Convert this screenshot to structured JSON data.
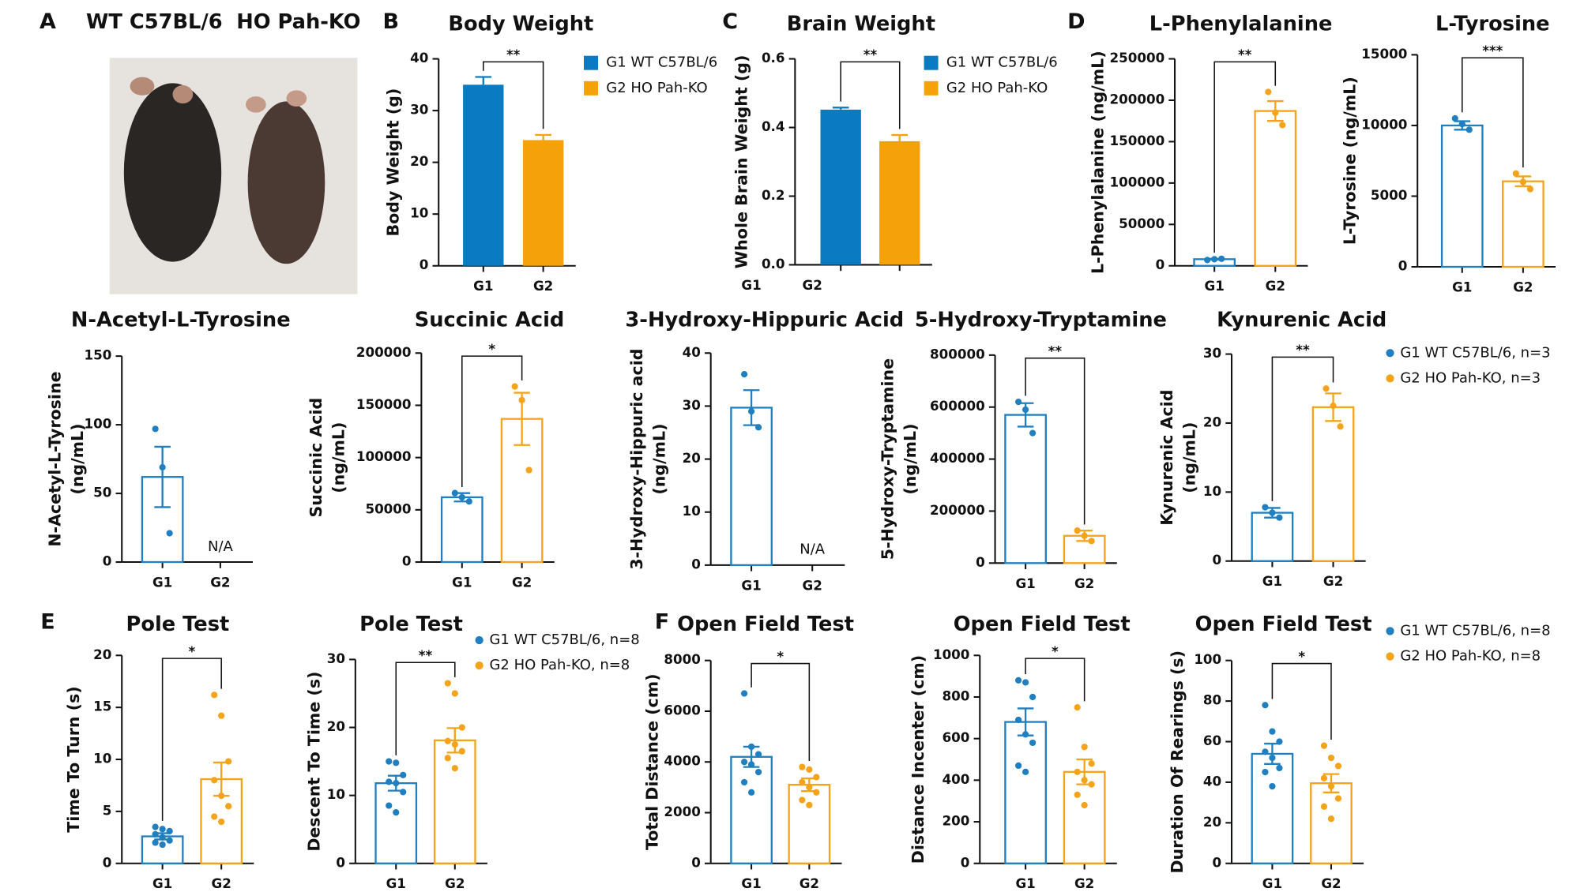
{
  "panel_a": {
    "label": "A",
    "captions": [
      "WT C57BL/6",
      "HO Pah-KO"
    ]
  },
  "legends": [
    {
      "marker": "circle",
      "items": [
        {
          "name": "G1 WT C57BL/6, n=3",
          "color": "#1f7fc0"
        },
        {
          "name": "G2 HO Pah-KO, n=3",
          "color": "#f5a31a"
        }
      ]
    },
    {
      "marker": "circle",
      "items": [
        {
          "name": "G1 WT C57BL/6, n=8",
          "color": "#1f7fc0"
        },
        {
          "name": "G2 HO Pah-KO, n=8",
          "color": "#f5a31a"
        }
      ]
    },
    {
      "marker": "circle",
      "items": [
        {
          "name": "G1 WT C57BL/6, n=8",
          "color": "#1f7fc0"
        },
        {
          "name": "G2 HO Pah-KO, n=8",
          "color": "#f5a31a"
        }
      ]
    }
  ],
  "chart_data": [
    {
      "type": "bar",
      "panel_label": "B",
      "title": "Body Weight",
      "ylabel": [
        "Body Weight (g)"
      ],
      "categories": [
        "G1",
        "G2"
      ],
      "bar_style": "filled",
      "legend": true,
      "significance": "**",
      "series": [
        {
          "name": "G1 WT C57BL/6",
          "color": "#0a7bc2",
          "values": [
            35,
            null
          ],
          "errors": [
            1.5,
            null
          ]
        },
        {
          "name": "G2 HO Pah-KO",
          "color": "#f5a10a",
          "values": [
            null,
            24.3
          ],
          "errors": [
            null,
            1
          ]
        }
      ],
      "ylim": [
        0,
        40
      ],
      "yticks": [
        0,
        10,
        20,
        30,
        40
      ]
    },
    {
      "type": "bar",
      "panel_label": "C",
      "title": "Brain Weight",
      "ylabel": [
        "Whole Brain Weight (g)"
      ],
      "categories": [
        "G1",
        "G2"
      ],
      "bar_style": "filled",
      "legend": true,
      "significance": "**",
      "series": [
        {
          "name": "G1 WT C57BL/6",
          "color": "#0a7bc2",
          "values": [
            0.452,
            null
          ],
          "errors": [
            0.006,
            null
          ]
        },
        {
          "name": "G2 HO Pah-KO",
          "color": "#f5a10a",
          "values": [
            null,
            0.36
          ],
          "errors": [
            null,
            0.018
          ]
        }
      ],
      "ylim": [
        0,
        0.6
      ],
      "yticks": [
        {
          "value": 0,
          "label": "0.0"
        },
        0.2,
        0.4,
        0.6
      ]
    },
    {
      "type": "bar",
      "panel_label": "D",
      "title": "L-Phenylalanine",
      "ylabel": [
        "L-Phenylalanine (ng/mL)"
      ],
      "categories": [
        "G1",
        "G2"
      ],
      "bar_style": "outline",
      "significance": "**",
      "series": [
        {
          "color": "#1f7fc0",
          "values": [
            8000,
            null
          ],
          "errors": [
            500,
            null
          ],
          "points": [
            [
              7000,
              8000,
              8500
            ],
            null
          ]
        },
        {
          "color": "#f5a31a",
          "values": [
            null,
            187000
          ],
          "errors": [
            null,
            12000
          ],
          "points": [
            null,
            [
              210000,
              185000,
              170000
            ]
          ]
        }
      ],
      "ylim": [
        0,
        250000
      ],
      "yticks": [
        0,
        50000,
        100000,
        150000,
        200000,
        250000
      ]
    },
    {
      "type": "bar",
      "title": "L-Tyrosine",
      "ylabel": [
        "L-Tyrosine (ng/mL)"
      ],
      "categories": [
        "G1",
        "G2"
      ],
      "bar_style": "outline",
      "significance": "***",
      "series": [
        {
          "color": "#1f7fc0",
          "values": [
            10000,
            null
          ],
          "errors": [
            300,
            null
          ],
          "points": [
            [
              10500,
              10100,
              9700
            ],
            null
          ]
        },
        {
          "color": "#f5a31a",
          "values": [
            null,
            6050
          ],
          "errors": [
            null,
            350
          ],
          "points": [
            null,
            [
              6600,
              6000,
              5500
            ]
          ]
        }
      ],
      "ylim": [
        0,
        15000
      ],
      "yticks": [
        0,
        5000,
        10000,
        15000
      ]
    },
    {
      "type": "bar",
      "title": "N-Acetyl-L-Tyrosine",
      "ylabel": [
        "N-Acetyl-L-Tyrosine",
        "(ng/mL)"
      ],
      "categories": [
        "G1",
        "G2"
      ],
      "bar_style": "outline",
      "missing_label": "N/A",
      "series": [
        {
          "color": "#1f7fc0",
          "values": [
            62,
            null
          ],
          "errors": [
            22,
            null
          ],
          "points": [
            [
              97,
              69,
              21
            ],
            null
          ]
        }
      ],
      "ylim": [
        0,
        150
      ],
      "yticks": [
        0,
        50,
        100,
        150
      ]
    },
    {
      "type": "bar",
      "title": "Succinic Acid",
      "ylabel": [
        "Succinic Acid",
        "(ng/mL)"
      ],
      "categories": [
        "G1",
        "G2"
      ],
      "bar_style": "outline",
      "significance": "*",
      "series": [
        {
          "color": "#1f7fc0",
          "values": [
            62000,
            null
          ],
          "errors": [
            4000,
            null
          ],
          "points": [
            [
              66000,
              62000,
              58000
            ],
            null
          ]
        },
        {
          "color": "#f5a31a",
          "values": [
            null,
            137000
          ],
          "errors": [
            null,
            25000
          ],
          "points": [
            null,
            [
              168000,
              155000,
              88000
            ]
          ]
        }
      ],
      "ylim": [
        0,
        200000
      ],
      "yticks": [
        0,
        50000,
        100000,
        150000,
        200000
      ]
    },
    {
      "type": "bar",
      "title": "3-Hydroxy-Hippuric Acid",
      "ylabel": [
        "3-Hydroxy-Hippuric acid",
        "(ng/mL)"
      ],
      "categories": [
        "G1",
        "G2"
      ],
      "bar_style": "outline",
      "missing_label": "N/A",
      "series": [
        {
          "color": "#1f7fc0",
          "values": [
            29.7,
            null
          ],
          "errors": [
            3.3,
            null
          ],
          "points": [
            [
              36,
              29,
              26
            ],
            null
          ]
        }
      ],
      "ylim": [
        0,
        40
      ],
      "yticks": [
        0,
        10,
        20,
        30,
        40
      ]
    },
    {
      "type": "bar",
      "title": "5-Hydroxy-Tryptamine",
      "ylabel": [
        "5-Hydroxy-Tryptamine",
        "(ng/mL)"
      ],
      "categories": [
        "G1",
        "G2"
      ],
      "bar_style": "outline",
      "significance": "**",
      "series": [
        {
          "color": "#1f7fc0",
          "values": [
            570000,
            null
          ],
          "errors": [
            45000,
            null
          ],
          "points": [
            [
              620000,
              590000,
              500000
            ],
            null
          ]
        },
        {
          "color": "#f5a31a",
          "values": [
            null,
            105000
          ],
          "errors": [
            null,
            20000
          ],
          "points": [
            null,
            [
              125000,
              105000,
              85000
            ]
          ]
        }
      ],
      "ylim": [
        0,
        800000
      ],
      "yticks": [
        0,
        200000,
        400000,
        600000,
        800000
      ]
    },
    {
      "type": "bar",
      "title": "Kynurenic Acid",
      "ylabel": [
        "Kynurenic Acid",
        "(ng/mL)"
      ],
      "categories": [
        "G1",
        "G2"
      ],
      "bar_style": "outline",
      "significance": "**",
      "series": [
        {
          "color": "#1f7fc0",
          "values": [
            7,
            null
          ],
          "errors": [
            0.7,
            null
          ],
          "points": [
            [
              7.8,
              7,
              6.3
            ],
            null
          ]
        },
        {
          "color": "#f5a31a",
          "values": [
            null,
            22.3
          ],
          "errors": [
            null,
            2
          ],
          "points": [
            null,
            [
              25,
              22.5,
              19.5
            ]
          ]
        }
      ],
      "ylim": [
        0,
        30
      ],
      "yticks": [
        0,
        10,
        20,
        30
      ]
    },
    {
      "type": "bar",
      "panel_label": "E",
      "title": "Pole Test",
      "ylabel": [
        "Time To Turn (s)"
      ],
      "categories": [
        "G1",
        "G2"
      ],
      "bar_style": "outline",
      "significance": "*",
      "series": [
        {
          "color": "#1f7fc0",
          "values": [
            2.6,
            null
          ],
          "errors": [
            0.3,
            null
          ],
          "points": [
            [
              3.5,
              3.3,
              3.1,
              2.8,
              2.5,
              2.2,
              2,
              1.8
            ],
            null
          ]
        },
        {
          "color": "#f5a31a",
          "values": [
            null,
            8.1
          ],
          "errors": [
            null,
            1.6
          ],
          "points": [
            null,
            [
              16.2,
              14.2,
              9.8,
              8,
              6.5,
              5.5,
              4.5,
              4
            ]
          ]
        }
      ],
      "ylim": [
        0,
        20
      ],
      "yticks": [
        0,
        5,
        10,
        15,
        20
      ]
    },
    {
      "type": "bar",
      "title": "Pole Test",
      "ylabel": [
        "Descent To Time (s)"
      ],
      "categories": [
        "G1",
        "G2"
      ],
      "bar_style": "outline",
      "significance": "**",
      "series": [
        {
          "color": "#1f7fc0",
          "values": [
            11.8,
            null
          ],
          "errors": [
            1.1,
            null
          ],
          "points": [
            [
              15,
              14.8,
              13,
              12,
              11.8,
              10.5,
              8.5,
              7.5
            ],
            null
          ]
        },
        {
          "color": "#f5a31a",
          "values": [
            null,
            18.1
          ],
          "errors": [
            null,
            1.8
          ],
          "points": [
            null,
            [
              26.5,
              25,
              20,
              18,
              17.5,
              16.5,
              15.5,
              14
            ]
          ]
        }
      ],
      "ylim": [
        0,
        30
      ],
      "yticks": [
        0,
        10,
        20,
        30
      ]
    },
    {
      "type": "bar",
      "panel_label": "F",
      "title": "Open Field Test",
      "ylabel": [
        "Total Distance (cm)"
      ],
      "categories": [
        "G1",
        "G2"
      ],
      "bar_style": "outline",
      "significance": "*",
      "series": [
        {
          "color": "#1f7fc0",
          "values": [
            4200,
            null
          ],
          "errors": [
            400,
            null
          ],
          "points": [
            [
              6700,
              4600,
              4300,
              4000,
              3900,
              3600,
              3200,
              2800
            ],
            null
          ]
        },
        {
          "color": "#f5a31a",
          "values": [
            null,
            3100
          ],
          "errors": [
            null,
            250
          ],
          "points": [
            null,
            [
              3800,
              3700,
              3400,
              3200,
              3000,
              2800,
              2500,
              2300
            ]
          ]
        }
      ],
      "ylim": [
        0,
        8000
      ],
      "yticks": [
        0,
        2000,
        4000,
        6000,
        8000
      ]
    },
    {
      "type": "bar",
      "title": "Open Field Test",
      "ylabel": [
        "Distance Incenter (cm)"
      ],
      "categories": [
        "G1",
        "G2"
      ],
      "bar_style": "outline",
      "significance": "*",
      "series": [
        {
          "color": "#1f7fc0",
          "values": [
            680,
            null
          ],
          "errors": [
            65,
            null
          ],
          "points": [
            [
              880,
              870,
              800,
              690,
              620,
              580,
              470,
              440
            ],
            null
          ]
        },
        {
          "color": "#f5a31a",
          "values": [
            null,
            440
          ],
          "errors": [
            null,
            60
          ],
          "points": [
            null,
            [
              750,
              560,
              480,
              440,
              400,
              380,
              330,
              280
            ]
          ]
        }
      ],
      "ylim": [
        0,
        1000
      ],
      "yticks": [
        0,
        200,
        400,
        600,
        800,
        1000
      ]
    },
    {
      "type": "bar",
      "title": "Open Field Test",
      "ylabel": [
        "Duration Of Rearings (s)"
      ],
      "categories": [
        "G1",
        "G2"
      ],
      "bar_style": "outline",
      "significance": "*",
      "series": [
        {
          "color": "#1f7fc0",
          "values": [
            54,
            null
          ],
          "errors": [
            5,
            null
          ],
          "points": [
            [
              78,
              65,
              60,
              55,
              52,
              47,
              45,
              38
            ],
            null
          ]
        },
        {
          "color": "#f5a31a",
          "values": [
            null,
            39.5
          ],
          "errors": [
            null,
            4.5
          ],
          "points": [
            null,
            [
              58,
              52,
              48,
              42,
              38,
              32,
              28,
              22
            ]
          ]
        }
      ],
      "ylim": [
        0,
        100
      ],
      "yticks": [
        0,
        20,
        40,
        60,
        80,
        100
      ]
    }
  ]
}
